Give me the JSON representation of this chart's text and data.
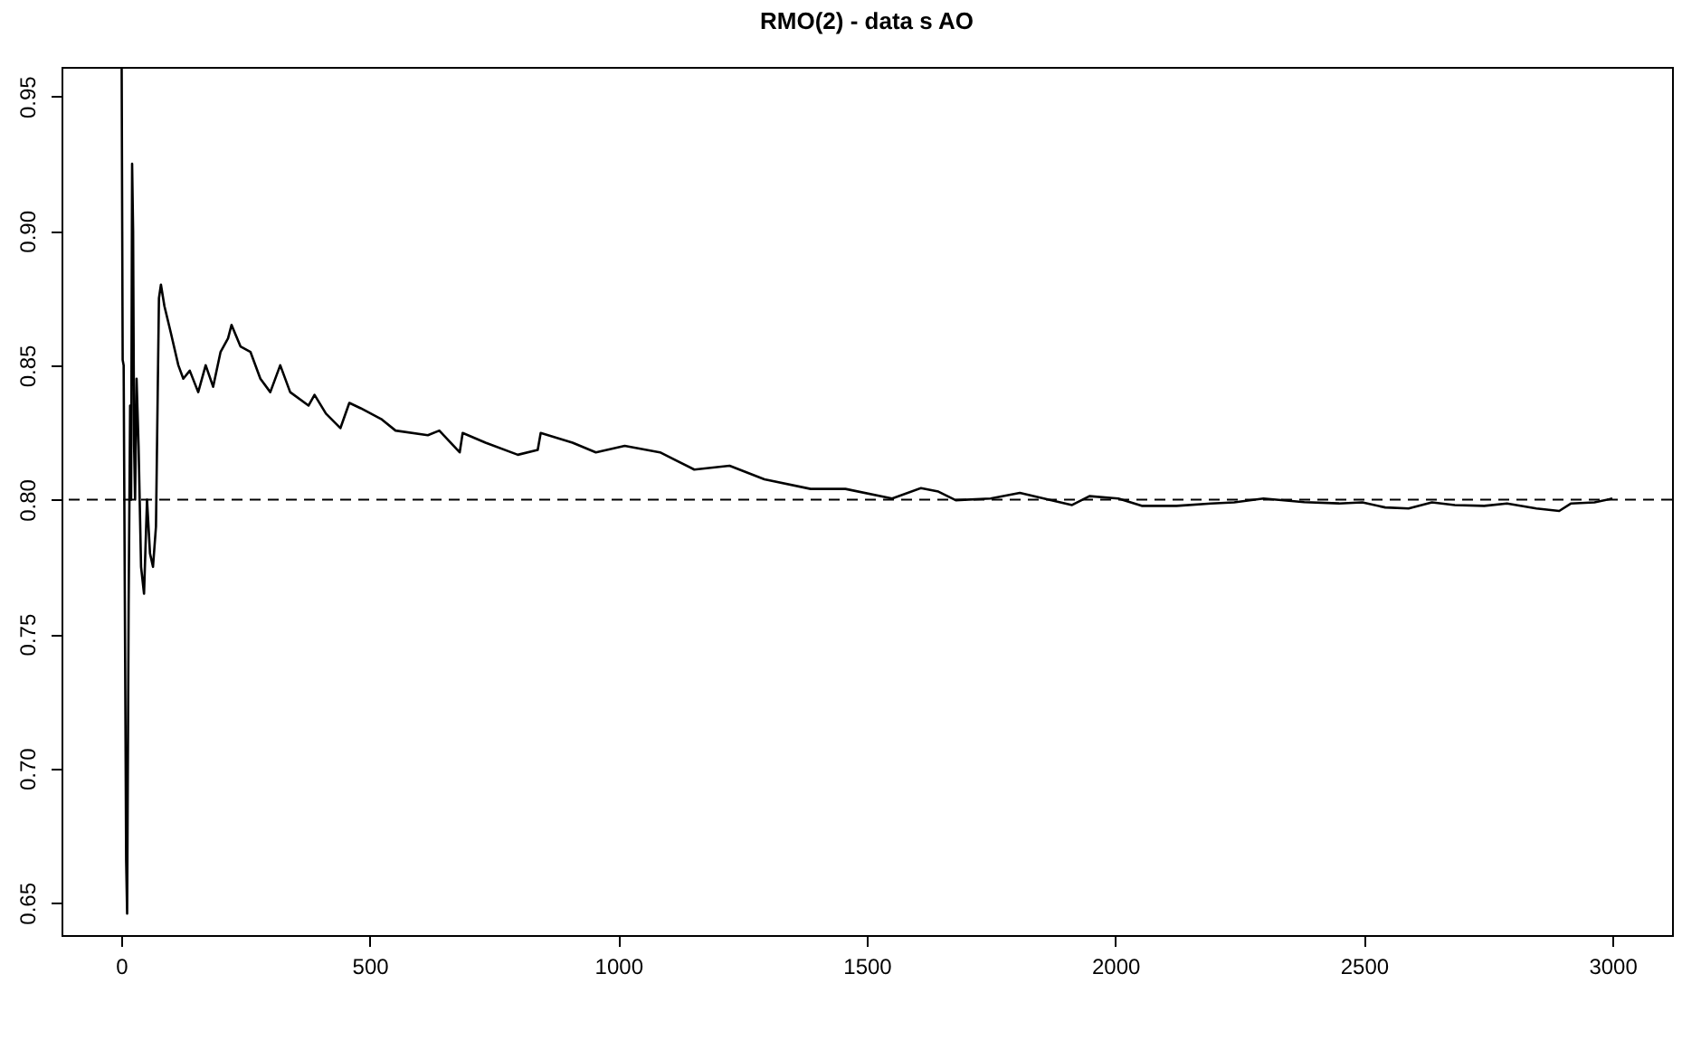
{
  "chart_data": {
    "type": "line",
    "title": "RMO(2) - data s AO",
    "x": [
      1,
      3,
      5,
      8,
      10,
      12,
      15,
      18,
      20,
      22,
      24,
      26,
      28,
      31,
      35,
      40,
      46,
      52,
      58,
      64,
      70,
      76,
      80,
      87,
      100,
      115,
      125,
      138,
      155,
      170,
      185,
      200,
      215,
      222,
      240,
      260,
      280,
      300,
      320,
      340,
      377,
      389,
      412,
      441,
      459,
      482,
      523,
      552,
      617,
      640,
      681,
      687,
      733,
      798,
      838,
      844,
      908,
      955,
      1013,
      1084,
      1153,
      1224,
      1294,
      1387,
      1457,
      1551,
      1609,
      1644,
      1679,
      1749,
      1808,
      1866,
      1913,
      1948,
      2006,
      2053,
      2123,
      2193,
      2239,
      2298,
      2380,
      2450,
      2497,
      2543,
      2590,
      2637,
      2683,
      2742,
      2788,
      2847,
      2893,
      2917,
      2964,
      3000
    ],
    "series": [
      {
        "color": "#000000",
        "values": [
          0.961,
          0.852,
          0.85,
          0.74,
          0.666,
          0.646,
          0.76,
          0.835,
          0.8,
          0.925,
          0.9,
          0.82,
          0.8,
          0.845,
          0.82,
          0.775,
          0.765,
          0.8,
          0.78,
          0.775,
          0.79,
          0.875,
          0.88,
          0.872,
          0.862,
          0.85,
          0.845,
          0.848,
          0.84,
          0.85,
          0.842,
          0.855,
          0.86,
          0.865,
          0.857,
          0.855,
          0.845,
          0.84,
          0.85,
          0.84,
          0.835,
          0.839,
          0.832,
          0.8266,
          0.836,
          0.834,
          0.83,
          0.8257,
          0.824,
          0.8257,
          0.8176,
          0.8248,
          0.8212,
          0.8167,
          0.8185,
          0.8248,
          0.8212,
          0.8176,
          0.82,
          0.8176,
          0.8112,
          0.8126,
          0.8076,
          0.804,
          0.804,
          0.8004,
          0.8043,
          0.803,
          0.7998,
          0.8004,
          0.8025,
          0.8,
          0.798,
          0.8013,
          0.8004,
          0.7977,
          0.7977,
          0.7986,
          0.799,
          0.8004,
          0.7991,
          0.7986,
          0.799,
          0.7971,
          0.7967,
          0.799,
          0.798,
          0.7977,
          0.7986,
          0.7967,
          0.7958,
          0.7986,
          0.799,
          0.8004
        ]
      }
    ],
    "xlim": [
      -120,
      3120
    ],
    "ylim": [
      0.638,
      0.961
    ],
    "xticks": [
      0,
      500,
      1000,
      1500,
      2000,
      2500,
      3000
    ],
    "yticks": [
      {
        "value": 0.65,
        "label": "0.65"
      },
      {
        "value": 0.7,
        "label": "0.70"
      },
      {
        "value": 0.75,
        "label": "0.75"
      },
      {
        "value": 0.8,
        "label": "0.80"
      },
      {
        "value": 0.85,
        "label": "0.85"
      },
      {
        "value": 0.9,
        "label": "0.90"
      },
      {
        "value": 0.95,
        "label": "0.95"
      }
    ],
    "ref_lines": [
      {
        "axis": "y",
        "value": 0.8,
        "line_style": "dashed",
        "color": "#000000"
      }
    ],
    "grid": false,
    "line_style": "solid",
    "marker": "none"
  }
}
